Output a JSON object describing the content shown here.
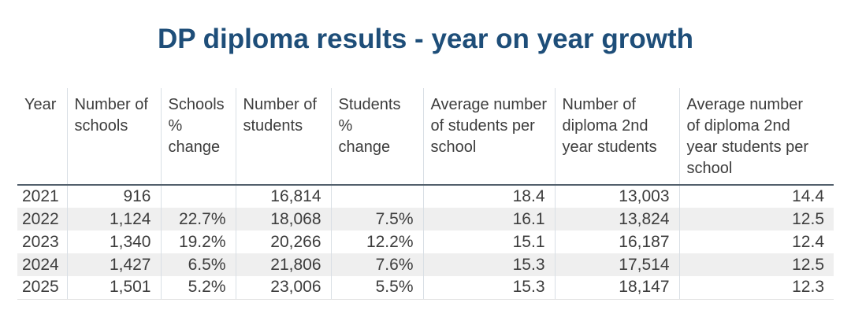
{
  "title": "DP diploma results - year on year growth",
  "colors": {
    "title": "#1e4e79",
    "header_rule": "#53606c",
    "row_stripe": "#efefef",
    "column_divider": "#d9dfe5",
    "text": "#3d3d3d",
    "background": "#ffffff"
  },
  "table": {
    "columns": [
      "Year",
      "Number of\nschools",
      "Schools\n%\nchange",
      "Number of\nstudents",
      "Students\n%\nchange",
      "Average number\nof students per\nschool",
      "Number of\ndiploma 2nd\nyear students",
      "Average number\nof diploma 2nd\nyear students per\nschool"
    ],
    "rows": [
      [
        "2021",
        "916",
        "",
        "16,814",
        "",
        "18.4",
        "13,003",
        "14.4"
      ],
      [
        "2022",
        "1,124",
        "22.7%",
        "18,068",
        "7.5%",
        "16.1",
        "13,824",
        "12.5"
      ],
      [
        "2023",
        "1,340",
        "19.2%",
        "20,266",
        "12.2%",
        "15.1",
        "16,187",
        "12.4"
      ],
      [
        "2024",
        "1,427",
        "6.5%",
        "21,806",
        "7.6%",
        "15.3",
        "17,514",
        "12.5"
      ],
      [
        "2025",
        "1,501",
        "5.2%",
        "23,006",
        "5.5%",
        "15.3",
        "18,147",
        "12.3"
      ]
    ]
  },
  "chart_data": {
    "type": "table",
    "title": "DP diploma results - year on year growth",
    "columns": [
      "Year",
      "Number of schools",
      "Schools % change",
      "Number of students",
      "Students % change",
      "Average number of students per school",
      "Number of diploma 2nd year students",
      "Average number of diploma 2nd year students per school"
    ],
    "rows": [
      {
        "year": 2021,
        "number_of_schools": 916,
        "schools_pct_change": null,
        "number_of_students": 16814,
        "students_pct_change": null,
        "avg_students_per_school": 18.4,
        "diploma_2nd_year_students": 13003,
        "avg_diploma_2nd_year_per_school": 14.4
      },
      {
        "year": 2022,
        "number_of_schools": 1124,
        "schools_pct_change": 22.7,
        "number_of_students": 18068,
        "students_pct_change": 7.5,
        "avg_students_per_school": 16.1,
        "diploma_2nd_year_students": 13824,
        "avg_diploma_2nd_year_per_school": 12.5
      },
      {
        "year": 2023,
        "number_of_schools": 1340,
        "schools_pct_change": 19.2,
        "number_of_students": 20266,
        "students_pct_change": 12.2,
        "avg_students_per_school": 15.1,
        "diploma_2nd_year_students": 16187,
        "avg_diploma_2nd_year_per_school": 12.4
      },
      {
        "year": 2024,
        "number_of_schools": 1427,
        "schools_pct_change": 6.5,
        "number_of_students": 21806,
        "students_pct_change": 7.6,
        "avg_students_per_school": 15.3,
        "diploma_2nd_year_students": 17514,
        "avg_diploma_2nd_year_per_school": 12.5
      },
      {
        "year": 2025,
        "number_of_schools": 1501,
        "schools_pct_change": 5.2,
        "number_of_students": 23006,
        "students_pct_change": 5.5,
        "avg_students_per_school": 15.3,
        "diploma_2nd_year_students": 18147,
        "avg_diploma_2nd_year_per_school": 12.3
      }
    ]
  }
}
